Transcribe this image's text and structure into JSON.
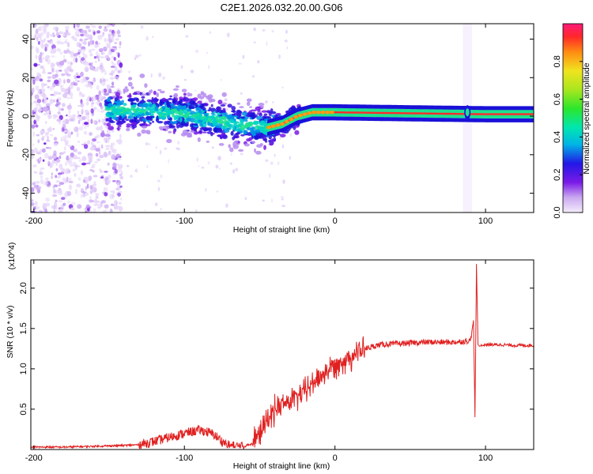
{
  "figure": {
    "title": "C2E1.2026.032.20.00.G06"
  },
  "chart_data": [
    {
      "type": "heatmap",
      "title": "C2E1.2026.032.20.00.G06",
      "xlabel": "Height of straight line (km)",
      "ylabel": "Frequency (Hz)",
      "xlim": [
        -202,
        132
      ],
      "ylim": [
        -50,
        48
      ],
      "xticks": [
        -200,
        -100,
        0,
        100
      ],
      "yticks": [
        -40,
        -20,
        0,
        20,
        40
      ],
      "grid": false,
      "colorbar": {
        "label": "Normalized spectral amplitude",
        "range": [
          0,
          1
        ],
        "ticks": [
          0.0,
          0.2,
          0.4,
          0.6,
          0.8
        ],
        "colormap": "rainbow (magenta low to red high)"
      },
      "centerline": {
        "x": [
          -200,
          -150,
          -125,
          -100,
          -80,
          -65,
          -55,
          -45,
          -35,
          -25,
          -15,
          0,
          50,
          100,
          130
        ],
        "y": [
          2,
          3,
          3,
          1,
          -2,
          -4,
          -5,
          -6,
          -4,
          0,
          2,
          2,
          1.5,
          1,
          1
        ]
      },
      "annotations": [
        "noisy scattered low-amplitude returns for heights below about -145 km",
        "high-amplitude signal band near 1-2 Hz above about -20 km",
        "disturbance near +88 km"
      ]
    },
    {
      "type": "line",
      "xlabel": "Height of straight line (km)",
      "ylabel": "SNR (10 * v/v)",
      "y_multiplier": "(x10^4)",
      "xlim": [
        -202,
        132
      ],
      "ylim": [
        0,
        2.35
      ],
      "xticks": [
        -200,
        -100,
        0,
        100
      ],
      "yticks": [
        0.5,
        1.0,
        1.5,
        2.0
      ],
      "grid": false,
      "series": [
        {
          "name": "SNR",
          "color": "#e02020",
          "x": [
            -202,
            -180,
            -160,
            -140,
            -130,
            -120,
            -110,
            -100,
            -95,
            -90,
            -85,
            -80,
            -75,
            -70,
            -65,
            -60,
            -55,
            -50,
            -45,
            -40,
            -35,
            -30,
            -25,
            -20,
            -15,
            -10,
            -5,
            0,
            10,
            20,
            30,
            40,
            50,
            60,
            70,
            80,
            85,
            90,
            92,
            93,
            94,
            95,
            96,
            100,
            110,
            120,
            132
          ],
          "y": [
            0.03,
            0.03,
            0.04,
            0.05,
            0.06,
            0.1,
            0.15,
            0.2,
            0.22,
            0.24,
            0.22,
            0.18,
            0.1,
            0.05,
            0.04,
            0.04,
            0.08,
            0.2,
            0.35,
            0.5,
            0.55,
            0.6,
            0.65,
            0.72,
            0.82,
            0.9,
            0.98,
            1.05,
            1.15,
            1.25,
            1.3,
            1.31,
            1.32,
            1.33,
            1.33,
            1.33,
            1.34,
            1.35,
            1.6,
            0.4,
            2.3,
            1.3,
            1.28,
            1.3,
            1.3,
            1.29,
            1.29
          ]
        }
      ]
    }
  ]
}
